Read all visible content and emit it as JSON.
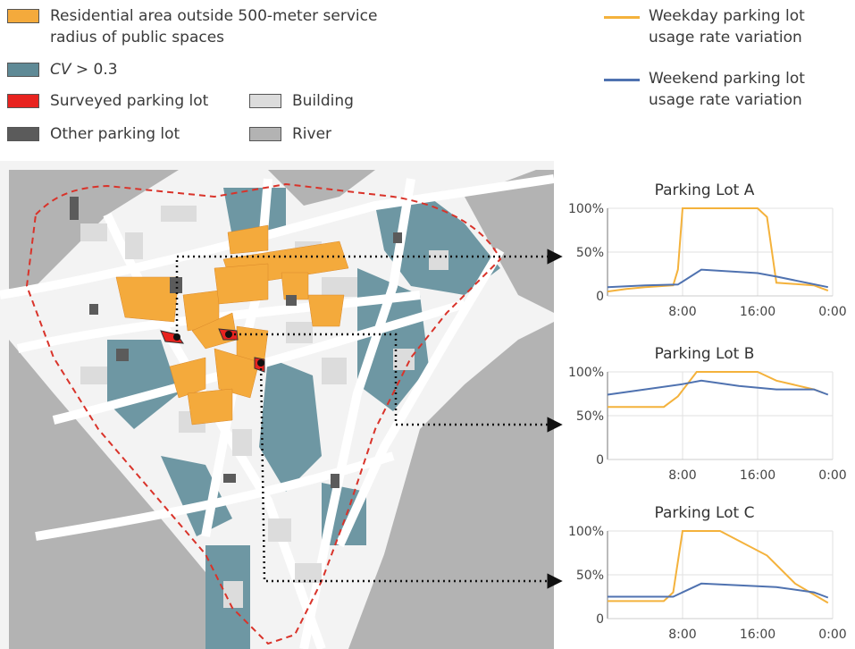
{
  "legend": {
    "items": [
      {
        "key": "residential",
        "label_line1": "Residential area outside 500-meter service",
        "label_line2": "radius of public spaces",
        "color": "#f4aa3c"
      },
      {
        "key": "cv",
        "label_italic": "CV",
        "label_rest": " > 0.3",
        "color": "#5f8a96"
      },
      {
        "key": "surveyed",
        "label": "Surveyed parking lot",
        "color": "#e8231f"
      },
      {
        "key": "other",
        "label": "Other parking lot",
        "color": "#5b5b5b"
      },
      {
        "key": "building",
        "label": "Building",
        "color": "#dcdcdc"
      },
      {
        "key": "river",
        "label": "River",
        "color": "#b3b3b3"
      }
    ],
    "lines": [
      {
        "label_line1": "Weekday parking lot",
        "label_line2": "usage rate variation",
        "color": "#f4b23c"
      },
      {
        "label_line1": "Weekend parking lot",
        "label_line2": "usage rate variation",
        "color": "#4f72b0"
      }
    ]
  },
  "chart_data": [
    {
      "type": "line",
      "title": "Parking Lot A",
      "x_ticks": [
        "8:00",
        "16:00",
        "0:00"
      ],
      "y_ticks": [
        "100%",
        "50%",
        "0"
      ],
      "ylim": [
        0,
        100
      ],
      "grid": true,
      "series": [
        {
          "name": "Weekday parking lot usage rate variation",
          "color": "#f4b23c",
          "x": [
            "0:00",
            "2:00",
            "4:00",
            "7:00",
            "7:30",
            "8:00",
            "12:00",
            "16:00",
            "17:00",
            "18:00",
            "22:00",
            "23:30"
          ],
          "y": [
            5,
            8,
            10,
            12,
            30,
            100,
            100,
            100,
            90,
            15,
            12,
            6
          ]
        },
        {
          "name": "Weekend parking lot usage rate variation",
          "color": "#4f72b0",
          "x": [
            "0:00",
            "2:00",
            "4:00",
            "7:30",
            "10:00",
            "16:00",
            "18:00",
            "23:30"
          ],
          "y": [
            10,
            11,
            12,
            13,
            30,
            26,
            22,
            10
          ]
        }
      ]
    },
    {
      "type": "line",
      "title": "Parking Lot B",
      "x_ticks": [
        "8:00",
        "16:00",
        "0:00"
      ],
      "y_ticks": [
        "100%",
        "50%",
        "0"
      ],
      "ylim": [
        0,
        100
      ],
      "grid": true,
      "series": [
        {
          "name": "Weekday parking lot usage rate variation",
          "color": "#f4b23c",
          "x": [
            "0:00",
            "3:00",
            "6:00",
            "7:30",
            "9:30",
            "14:00",
            "16:00",
            "18:00",
            "22:00",
            "23:00"
          ],
          "y": [
            60,
            60,
            60,
            72,
            100,
            100,
            100,
            90,
            80,
            76
          ]
        },
        {
          "name": "Weekend parking lot usage rate variation",
          "color": "#4f72b0",
          "x": [
            "0:00",
            "4:00",
            "8:00",
            "10:00",
            "14:00",
            "18:00",
            "22:00",
            "23:30"
          ],
          "y": [
            74,
            80,
            86,
            90,
            84,
            80,
            80,
            74
          ]
        }
      ]
    },
    {
      "type": "line",
      "title": "Parking Lot C",
      "x_ticks": [
        "8:00",
        "16:00",
        "0:00"
      ],
      "y_ticks": [
        "100%",
        "50%",
        "0"
      ],
      "ylim": [
        0,
        100
      ],
      "grid": true,
      "series": [
        {
          "name": "Weekday parking lot usage rate variation",
          "color": "#f4b23c",
          "x": [
            "0:00",
            "3:00",
            "6:00",
            "7:00",
            "8:00",
            "12:00",
            "17:00",
            "20:00",
            "23:30"
          ],
          "y": [
            20,
            20,
            20,
            30,
            100,
            100,
            72,
            40,
            18
          ]
        },
        {
          "name": "Weekend parking lot usage rate variation",
          "color": "#4f72b0",
          "x": [
            "0:00",
            "4:00",
            "7:00",
            "10:00",
            "14:00",
            "18:00",
            "22:00",
            "23:30"
          ],
          "y": [
            25,
            25,
            25,
            40,
            38,
            36,
            30,
            24
          ]
        }
      ]
    }
  ]
}
